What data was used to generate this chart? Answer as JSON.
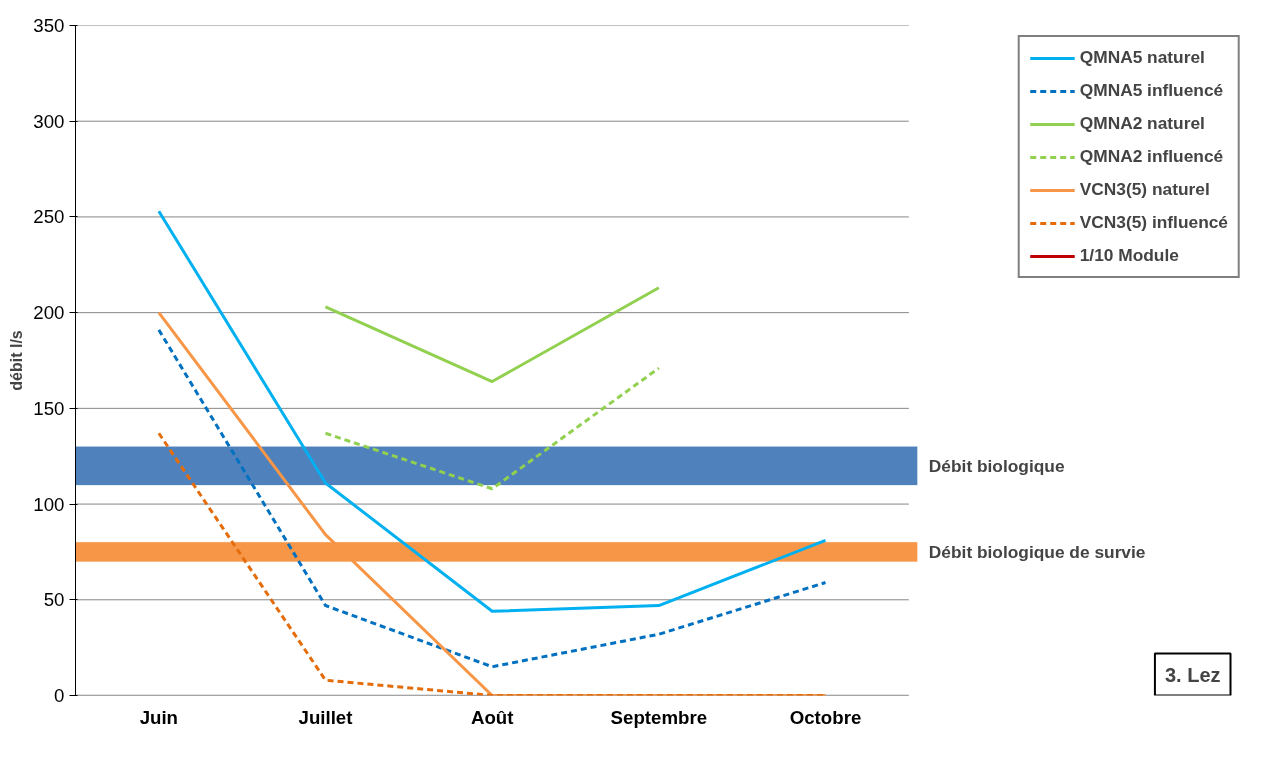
{
  "chart_data": {
    "type": "line",
    "ylabel": "débit l/s",
    "categories": [
      "Juin",
      "Juillet",
      "Août",
      "Septembre",
      "Octobre"
    ],
    "series": [
      {
        "name": "QMNA5 naturel",
        "color": "#00b0f0",
        "line_style": "solid",
        "values": [
          253,
          111,
          44,
          47,
          81
        ]
      },
      {
        "name": "QMNA5 influencé",
        "color": "#0070c0",
        "line_style": "dashed",
        "values": [
          191,
          47,
          15,
          32,
          59
        ]
      },
      {
        "name": "QMNA2 naturel",
        "color": "#92d050",
        "line_style": "solid",
        "values": [
          null,
          203,
          164,
          213,
          null
        ]
      },
      {
        "name": "QMNA2 influencé",
        "color": "#92d050",
        "line_style": "dashed",
        "values": [
          null,
          137,
          108,
          171,
          null
        ]
      },
      {
        "name": "VCN3(5) naturel",
        "color": "#f79646",
        "line_style": "solid",
        "values": [
          200,
          84,
          0,
          0,
          0
        ]
      },
      {
        "name": "VCN3(5) influencé",
        "color": "#e46c0a",
        "line_style": "dashed",
        "values": [
          137,
          8,
          0,
          0,
          0
        ]
      },
      {
        "name": "1/10 Module",
        "color": "#c00000",
        "line_style": "solid",
        "values": [
          null,
          null,
          null,
          null,
          null
        ]
      }
    ],
    "bands": [
      {
        "axis": "y",
        "from": 110,
        "to": 130,
        "label": "Débit biologique",
        "color": "#4f81bd"
      },
      {
        "axis": "y",
        "from": 70,
        "to": 80,
        "label": "Débit biologique de survie",
        "color": "#f79646"
      }
    ],
    "annotations": [
      "3. Lez"
    ],
    "ylim": [
      0,
      350
    ],
    "yticks": [
      0,
      50,
      100,
      150,
      200,
      250,
      300,
      350
    ],
    "grid": "y",
    "legend": "right",
    "marker": "none"
  }
}
